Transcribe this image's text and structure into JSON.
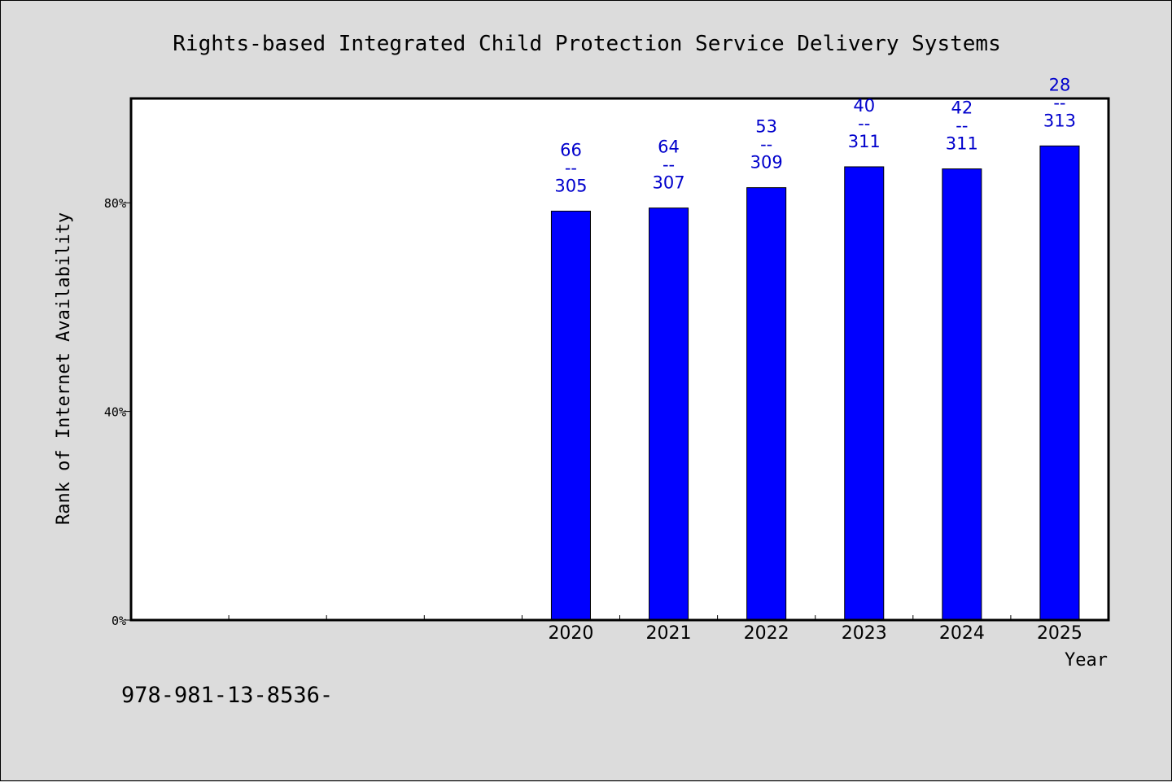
{
  "chart_data": {
    "type": "bar",
    "title": "Rights-based Integrated Child Protection Service Delivery Systems",
    "xlabel": "Year",
    "ylabel": "Rank of Internet Availability",
    "ylim": [
      0,
      1.0
    ],
    "yticks": [
      {
        "value": 0,
        "label": "0%"
      },
      {
        "value": 0.4,
        "label": "40%"
      },
      {
        "value": 0.8,
        "label": "80%"
      }
    ],
    "total_slots": 10,
    "first_slot": 4,
    "categories": [
      "2020",
      "2021",
      "2022",
      "2023",
      "2024",
      "2025"
    ],
    "values": [
      0.784,
      0.79,
      0.829,
      0.869,
      0.865,
      0.909
    ],
    "data_labels": [
      {
        "top": "66",
        "mid": "--",
        "bottom": "305"
      },
      {
        "top": "64",
        "mid": "--",
        "bottom": "307"
      },
      {
        "top": "53",
        "mid": "--",
        "bottom": "309"
      },
      {
        "top": "40",
        "mid": "--",
        "bottom": "311"
      },
      {
        "top": "42",
        "mid": "--",
        "bottom": "311"
      },
      {
        "top": "28",
        "mid": "--",
        "bottom": "313"
      }
    ],
    "bar_color": "#0000ff",
    "label_color": "#0000cc",
    "plot_background": "#ffffff",
    "page_background": "#dcdcdc",
    "grid": false,
    "legend": "none"
  },
  "footer_text": "978-981-13-8536-"
}
